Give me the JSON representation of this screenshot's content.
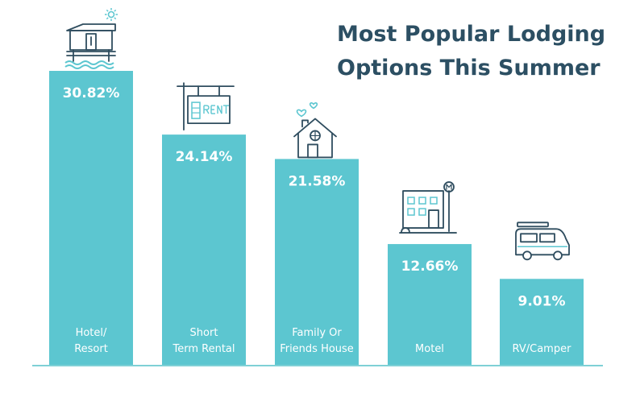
{
  "chart_data": {
    "type": "bar",
    "title_lines": [
      "Most Popular Lodging",
      "Options This Summer"
    ],
    "categories": [
      [
        "Hotel/",
        "Resort"
      ],
      [
        "Short",
        "Term Rental"
      ],
      [
        "Family Or",
        "Friends House"
      ],
      [
        "Motel"
      ],
      [
        "RV/Camper"
      ]
    ],
    "values": [
      30.82,
      24.14,
      21.58,
      12.66,
      9.01
    ],
    "value_labels": [
      "30.82%",
      "24.14%",
      "21.58%",
      "12.66%",
      "9.01%"
    ],
    "icons": [
      "beach-hut-icon",
      "rent-sign-icon",
      "house-hearts-icon",
      "motel-building-icon",
      "camper-van-icon"
    ],
    "ylim": [
      0,
      30.82
    ],
    "xlabel": "",
    "ylabel": "",
    "grid": false,
    "colors": {
      "bar": "#5cc6d0",
      "title": "#2c4f63",
      "icon": "#2f4d5f",
      "accent": "#5cc6d0",
      "baseline": "#7fd0d6",
      "bar_text": "#ffffff"
    }
  }
}
